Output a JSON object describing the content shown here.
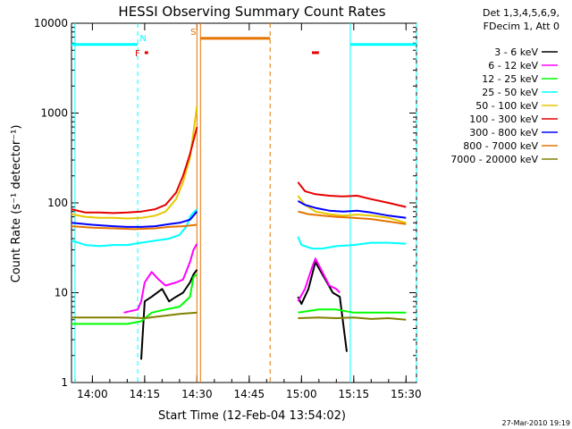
{
  "chart_data": {
    "type": "line",
    "title": "HESSI Observing Summary Count Rates",
    "xlabel": "Start Time (12-Feb-04 13:54:02)",
    "ylabel": "Count Rate (s⁻¹ detector⁻¹)",
    "yscale": "log",
    "ylim": [
      1,
      10000
    ],
    "xlim": [
      "13:54",
      "15:33"
    ],
    "x_ticks": [
      "14:00",
      "14:15",
      "14:30",
      "14:45",
      "15:00",
      "15:15",
      "15:30"
    ],
    "y_ticks": [
      "1",
      "10",
      "100",
      "1000",
      "10000"
    ],
    "legend_header": [
      "Det 1,3,4,5,6,9,",
      "FDecim 1, Att 0"
    ],
    "legend_position": "right",
    "footer": "27-Mar-2010 19:19",
    "series": [
      {
        "name": "3 - 6 keV",
        "color": "#000000",
        "segments": [
          [
            [
              "14:14",
              1.8
            ],
            [
              "14:15",
              8
            ],
            [
              "14:17",
              9
            ],
            [
              "14:20",
              11
            ],
            [
              "14:22",
              8
            ],
            [
              "14:24",
              9
            ],
            [
              "14:26",
              10
            ],
            [
              "14:28",
              13
            ],
            [
              "14:29",
              16
            ],
            [
              "14:30",
              18
            ]
          ],
          [
            [
              "14:59",
              9
            ],
            [
              "15:00",
              7.5
            ],
            [
              "15:02",
              11
            ],
            [
              "15:04",
              22
            ],
            [
              "15:06",
              16
            ],
            [
              "15:09",
              10
            ],
            [
              "15:11",
              9
            ],
            [
              "15:13",
              2.2
            ]
          ]
        ]
      },
      {
        "name": "6 - 12 keV",
        "color": "#ff00ff",
        "segments": [
          [
            [
              "14:09",
              6
            ],
            [
              "14:13",
              6.5
            ],
            [
              "14:14",
              8
            ],
            [
              "14:15",
              13
            ],
            [
              "14:17",
              17
            ],
            [
              "14:19",
              14
            ],
            [
              "14:21",
              12
            ],
            [
              "14:24",
              13
            ],
            [
              "14:26",
              14
            ],
            [
              "14:28",
              22
            ],
            [
              "14:29",
              30
            ],
            [
              "14:30",
              35
            ]
          ],
          [
            [
              "14:59",
              8
            ],
            [
              "15:01",
              11
            ],
            [
              "15:03",
              19
            ],
            [
              "15:04",
              24
            ],
            [
              "15:06",
              17
            ],
            [
              "15:08",
              12
            ],
            [
              "15:10",
              11
            ],
            [
              "15:11",
              10
            ]
          ]
        ]
      },
      {
        "name": "12 - 25 keV",
        "color": "#00ff00",
        "segments": [
          [
            [
              "13:54",
              4.5
            ],
            [
              "14:10",
              4.5
            ],
            [
              "14:14",
              4.8
            ],
            [
              "14:17",
              6
            ],
            [
              "14:21",
              6.5
            ],
            [
              "14:25",
              7
            ],
            [
              "14:28",
              9
            ],
            [
              "14:29",
              15
            ],
            [
              "14:30",
              16
            ]
          ],
          [
            [
              "14:59",
              6
            ],
            [
              "15:05",
              6.5
            ],
            [
              "15:10",
              6.5
            ],
            [
              "15:15",
              6
            ],
            [
              "15:20",
              6
            ],
            [
              "15:25",
              6
            ],
            [
              "15:30",
              6
            ]
          ]
        ]
      },
      {
        "name": "25 - 50 keV",
        "color": "#00ffff",
        "segments": [
          [
            [
              "13:54",
              38
            ],
            [
              "13:58",
              34
            ],
            [
              "14:02",
              33
            ],
            [
              "14:06",
              34
            ],
            [
              "14:10",
              34
            ],
            [
              "14:14",
              36
            ],
            [
              "14:18",
              38
            ],
            [
              "14:22",
              40
            ],
            [
              "14:25",
              44
            ],
            [
              "14:27",
              55
            ],
            [
              "14:28",
              70
            ],
            [
              "14:29",
              78
            ],
            [
              "14:30",
              85
            ]
          ],
          [
            [
              "14:59",
              42
            ],
            [
              "15:00",
              34
            ],
            [
              "15:03",
              31
            ],
            [
              "15:06",
              31
            ],
            [
              "15:10",
              33
            ],
            [
              "15:15",
              34
            ],
            [
              "15:20",
              36
            ],
            [
              "15:25",
              36
            ],
            [
              "15:30",
              35
            ]
          ]
        ]
      },
      {
        "name": "50 - 100 keV",
        "color": "#e6c700",
        "segments": [
          [
            [
              "13:54",
              75
            ],
            [
              "13:58",
              70
            ],
            [
              "14:02",
              68
            ],
            [
              "14:06",
              68
            ],
            [
              "14:10",
              67
            ],
            [
              "14:14",
              68
            ],
            [
              "14:18",
              72
            ],
            [
              "14:21",
              80
            ],
            [
              "14:24",
              110
            ],
            [
              "14:26",
              170
            ],
            [
              "14:28",
              320
            ],
            [
              "14:30",
              1200
            ]
          ],
          [
            [
              "14:59",
              120
            ],
            [
              "15:01",
              95
            ],
            [
              "15:04",
              80
            ],
            [
              "15:08",
              75
            ],
            [
              "15:12",
              72
            ],
            [
              "15:16",
              74
            ],
            [
              "15:20",
              72
            ],
            [
              "15:25",
              68
            ],
            [
              "15:30",
              60
            ]
          ]
        ]
      },
      {
        "name": "100 - 300 keV",
        "color": "#e60000",
        "segments": [
          [
            [
              "13:54",
              85
            ],
            [
              "13:58",
              78
            ],
            [
              "14:02",
              78
            ],
            [
              "14:06",
              77
            ],
            [
              "14:10",
              78
            ],
            [
              "14:14",
              80
            ],
            [
              "14:18",
              85
            ],
            [
              "14:21",
              95
            ],
            [
              "14:24",
              130
            ],
            [
              "14:26",
              200
            ],
            [
              "14:28",
              350
            ],
            [
              "14:30",
              700
            ]
          ],
          [
            [
              "14:59",
              170
            ],
            [
              "15:01",
              135
            ],
            [
              "15:04",
              125
            ],
            [
              "15:08",
              120
            ],
            [
              "15:12",
              118
            ],
            [
              "15:16",
              120
            ],
            [
              "15:20",
              110
            ],
            [
              "15:25",
              100
            ],
            [
              "15:30",
              90
            ]
          ]
        ]
      },
      {
        "name": "300 - 800 keV",
        "color": "#0000ff",
        "segments": [
          [
            [
              "13:54",
              60
            ],
            [
              "14:00",
              57
            ],
            [
              "14:06",
              55
            ],
            [
              "14:10",
              54
            ],
            [
              "14:14",
              54
            ],
            [
              "14:18",
              55
            ],
            [
              "14:22",
              58
            ],
            [
              "14:25",
              60
            ],
            [
              "14:28",
              65
            ],
            [
              "14:30",
              80
            ]
          ],
          [
            [
              "14:59",
              105
            ],
            [
              "15:01",
              95
            ],
            [
              "15:04",
              88
            ],
            [
              "15:08",
              82
            ],
            [
              "15:12",
              80
            ],
            [
              "15:16",
              82
            ],
            [
              "15:20",
              78
            ],
            [
              "15:25",
              72
            ],
            [
              "15:30",
              68
            ]
          ]
        ]
      },
      {
        "name": "800 - 7000 keV",
        "color": "#e67300",
        "segments": [
          [
            [
              "13:54",
              55
            ],
            [
              "14:00",
              53
            ],
            [
              "14:06",
              52
            ],
            [
              "14:12",
              51
            ],
            [
              "14:18",
              52
            ],
            [
              "14:22",
              54
            ],
            [
              "14:26",
              55
            ],
            [
              "14:30",
              57
            ]
          ],
          [
            [
              "14:59",
              80
            ],
            [
              "15:02",
              75
            ],
            [
              "15:06",
              72
            ],
            [
              "15:10",
              70
            ],
            [
              "15:15",
              68
            ],
            [
              "15:20",
              66
            ],
            [
              "15:25",
              62
            ],
            [
              "15:30",
              58
            ]
          ]
        ]
      },
      {
        "name": "7000 - 20000 keV",
        "color": "#808000",
        "segments": [
          [
            [
              "13:54",
              5.3
            ],
            [
              "14:05",
              5.3
            ],
            [
              "14:10",
              5.3
            ],
            [
              "14:15",
              5.2
            ],
            [
              "14:20",
              5.5
            ],
            [
              "14:25",
              5.8
            ],
            [
              "14:30",
              6
            ]
          ],
          [
            [
              "14:59",
              5.2
            ],
            [
              "15:05",
              5.3
            ],
            [
              "15:10",
              5.2
            ],
            [
              "15:15",
              5.3
            ],
            [
              "15:20",
              5.1
            ],
            [
              "15:25",
              5.2
            ],
            [
              "15:30",
              5
            ]
          ]
        ]
      }
    ],
    "annotations": [
      {
        "label": "N",
        "color": "#00ffff",
        "segments": [
          [
            "13:54",
            "14:13"
          ],
          [
            "15:14",
            "15:33"
          ]
        ],
        "level": 5800
      },
      {
        "label": "F",
        "color": "#e60000",
        "segments": [
          [
            "14:15",
            "14:16"
          ],
          [
            "15:03",
            "15:05"
          ]
        ],
        "level": 4700
      },
      {
        "label": "S",
        "color": "#e67300",
        "segments": [
          [
            "14:31",
            "14:51"
          ]
        ],
        "level": 6800
      }
    ],
    "vertical_markers": [
      {
        "time": "13:55",
        "color": "#00ffff",
        "style": "solid"
      },
      {
        "time": "14:13",
        "color": "#00ffff",
        "style": "dashed"
      },
      {
        "time": "14:30",
        "color": "#e67300",
        "style": "solid"
      },
      {
        "time": "14:31",
        "color": "#e67300",
        "style": "solid"
      },
      {
        "time": "14:51",
        "color": "#e67300",
        "style": "dashed"
      },
      {
        "time": "15:14",
        "color": "#00ffff",
        "style": "solid"
      },
      {
        "time": "15:33",
        "color": "#00ffff",
        "style": "dashed"
      }
    ]
  }
}
